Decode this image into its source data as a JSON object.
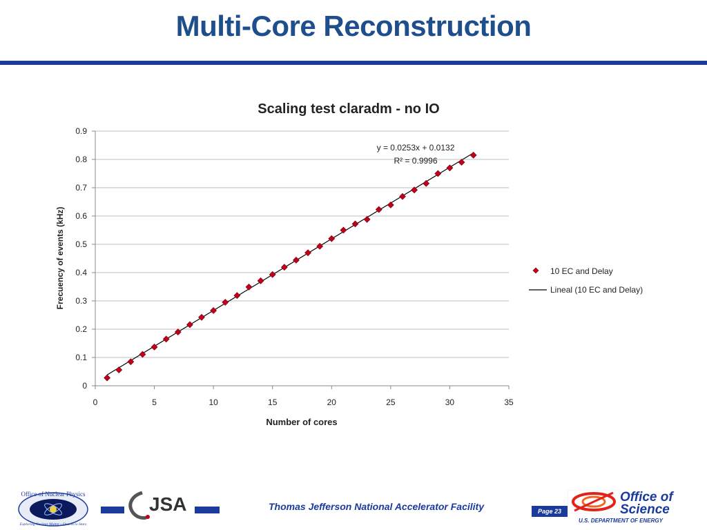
{
  "slide": {
    "title": "Multi-Core Reconstruction"
  },
  "footer": {
    "facility": "Thomas Jefferson National Accelerator Facility",
    "page": "Page 23",
    "onp_arc_top": "Office of Nuclear Physics",
    "onp_arc_bottom": "Exploring Nuclear Matter - Quarks to Stars",
    "jsa_logo": "JSA",
    "doe_title": "Office of Science",
    "doe_subtitle": "U.S. DEPARTMENT OF ENERGY"
  },
  "colors": {
    "title": "#1f4e8c",
    "brand_blue": "#1a3a9c",
    "marker": "#c0001a",
    "trendline": "#000000",
    "grid": "#bfbfbf"
  },
  "chart_data": {
    "type": "scatter",
    "title": "Scaling test claradm - no IO",
    "xlabel": "Number of cores",
    "ylabel": "Frecuency of events (kHz)",
    "xlim": [
      0,
      35
    ],
    "ylim": [
      0,
      0.9
    ],
    "xticks": [
      0,
      5,
      10,
      15,
      20,
      25,
      30,
      35
    ],
    "yticks": [
      0,
      0.1,
      0.2,
      0.3,
      0.4,
      0.5,
      0.6,
      0.7,
      0.8,
      0.9
    ],
    "grid": "horizontal",
    "legend_position": "right",
    "series": [
      {
        "name": "10 EC and Delay",
        "marker": "diamond",
        "x": [
          1,
          2,
          3,
          4,
          5,
          6,
          7,
          8,
          9,
          10,
          11,
          12,
          13,
          14,
          15,
          16,
          17,
          18,
          19,
          20,
          21,
          22,
          23,
          24,
          25,
          26,
          27,
          28,
          29,
          30,
          31,
          32
        ],
        "y": [
          0.028,
          0.056,
          0.085,
          0.111,
          0.137,
          0.165,
          0.19,
          0.216,
          0.242,
          0.266,
          0.295,
          0.319,
          0.349,
          0.371,
          0.393,
          0.419,
          0.444,
          0.47,
          0.493,
          0.52,
          0.55,
          0.572,
          0.588,
          0.623,
          0.639,
          0.669,
          0.692,
          0.715,
          0.75,
          0.77,
          0.79,
          0.815
        ]
      }
    ],
    "trendline": {
      "name": "Lineal (10 EC and Delay)",
      "slope": 0.0253,
      "intercept": 0.0132,
      "x_range": [
        1,
        32
      ],
      "equation": "y = 0.0253x + 0.0132",
      "r_squared": "R² = 0.9996"
    }
  }
}
